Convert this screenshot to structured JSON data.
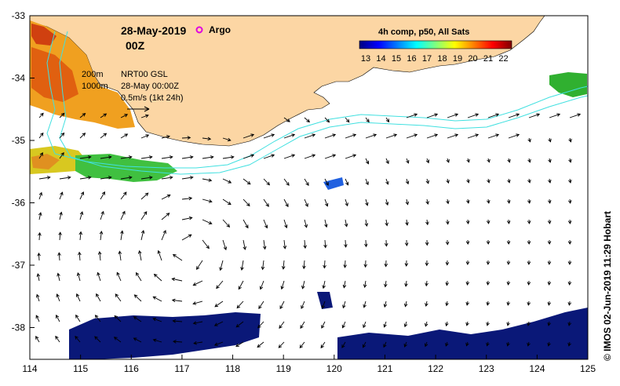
{
  "map": {
    "date": "28-May-2019",
    "time": "00Z",
    "argo_label": "Argo",
    "argo_color": "#e000e0",
    "info": {
      "contour_200": "200m",
      "contour_1000": "1000m",
      "product": "NRT00 GSL",
      "product_time": "28-May 00:00Z",
      "scale_label": "0.5m/s (1kt 24h)"
    },
    "colorbar": {
      "title": "4h comp, p50, All Sats",
      "ticks": [
        "13",
        "14",
        "15",
        "16",
        "17",
        "18",
        "19",
        "20",
        "21",
        "22"
      ],
      "colors": [
        "#00007f",
        "#0000ff",
        "#007fff",
        "#00ffff",
        "#7fff7f",
        "#ffff00",
        "#ff7f00",
        "#ff0000",
        "#7f0000"
      ]
    },
    "x_ticks": [
      "114",
      "115",
      "116",
      "117",
      "118",
      "119",
      "120",
      "121",
      "122",
      "123",
      "124",
      "125"
    ],
    "y_ticks": [
      "-33",
      "-34",
      "-35",
      "-36",
      "-37",
      "-38"
    ],
    "credit": "© IMOS 02-Jun-2019 11:29 Hobart",
    "land_color": "#fcd6a4",
    "contour_color": "#40e0e0"
  }
}
